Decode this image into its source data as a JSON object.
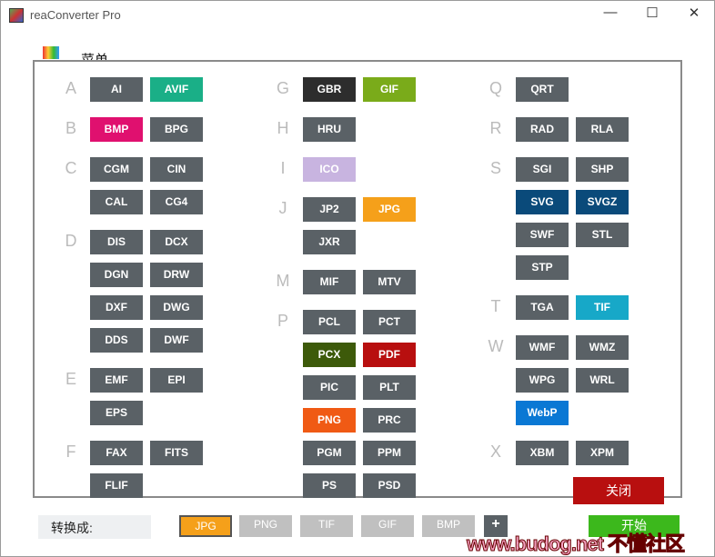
{
  "window": {
    "title": "reaConverter Pro",
    "controls": [
      "—",
      "☐",
      "✕"
    ]
  },
  "menu": {
    "label": "菜单"
  },
  "bottom": {
    "convert_label": "转换成:",
    "quick_formats": [
      "JPG",
      "PNG",
      "TIF",
      "GIF",
      "BMP"
    ],
    "selected": "JPG",
    "add": "+",
    "start": "开始"
  },
  "watermark": "www.budog.net 不懂社区",
  "colors": {
    "default": "#5a6166",
    "AVIF": "#1aaf87",
    "BMP": "#e0106f",
    "GBR": "#2d2d2d",
    "GIF": "#7aab1a",
    "ICO": "#c8b4e0",
    "JPG": "#f5a01a",
    "SVG": "#0a4a7a",
    "SVGZ": "#0a4a7a",
    "TIF": "#17a8c8",
    "PCX": "#3d5a0a",
    "PDF": "#b80f0f",
    "PNG": "#f05a14",
    "WebP": "#0a78d4"
  },
  "modal": {
    "close": "关闭",
    "columns": [
      [
        {
          "letter": "A",
          "rows": [
            [
              "AI",
              "AVIF"
            ]
          ]
        },
        {
          "letter": "B",
          "rows": [
            [
              "BMP",
              "BPG"
            ]
          ]
        },
        {
          "letter": "C",
          "rows": [
            [
              "CGM",
              "CIN"
            ],
            [
              "CAL",
              "CG4"
            ]
          ]
        },
        {
          "letter": "D",
          "rows": [
            [
              "DIS",
              "DCX"
            ],
            [
              "DGN",
              "DRW"
            ],
            [
              "DXF",
              "DWG"
            ],
            [
              "DDS",
              "DWF"
            ]
          ]
        },
        {
          "letter": "E",
          "rows": [
            [
              "EMF",
              "EPI"
            ],
            [
              "EPS"
            ]
          ]
        },
        {
          "letter": "F",
          "rows": [
            [
              "FAX",
              "FITS"
            ],
            [
              "FLIF"
            ]
          ]
        }
      ],
      [
        {
          "letter": "G",
          "rows": [
            [
              "GBR",
              "GIF"
            ]
          ]
        },
        {
          "letter": "H",
          "rows": [
            [
              "HRU"
            ]
          ]
        },
        {
          "letter": "I",
          "rows": [
            [
              "ICO"
            ]
          ]
        },
        {
          "letter": "J",
          "rows": [
            [
              "JP2",
              "JPG"
            ],
            [
              "JXR"
            ]
          ]
        },
        {
          "letter": "M",
          "rows": [
            [
              "MIF",
              "MTV"
            ]
          ]
        },
        {
          "letter": "P",
          "rows": [
            [
              "PCL",
              "PCT"
            ],
            [
              "PCX",
              "PDF"
            ],
            [
              "PIC",
              "PLT"
            ],
            [
              "PNG",
              "PRC"
            ],
            [
              "PGM",
              "PPM"
            ],
            [
              "PS",
              "PSD"
            ]
          ]
        }
      ],
      [
        {
          "letter": "Q",
          "rows": [
            [
              "QRT"
            ]
          ]
        },
        {
          "letter": "R",
          "rows": [
            [
              "RAD",
              "RLA"
            ]
          ]
        },
        {
          "letter": "S",
          "rows": [
            [
              "SGI",
              "SHP"
            ],
            [
              "SVG",
              "SVGZ"
            ],
            [
              "SWF",
              "STL"
            ],
            [
              "STP"
            ]
          ]
        },
        {
          "letter": "T",
          "rows": [
            [
              "TGA",
              "TIF"
            ]
          ]
        },
        {
          "letter": "W",
          "rows": [
            [
              "WMF",
              "WMZ"
            ],
            [
              "WPG",
              "WRL"
            ],
            [
              "WebP"
            ]
          ]
        },
        {
          "letter": "X",
          "rows": [
            [
              "XBM",
              "XPM"
            ]
          ]
        }
      ]
    ]
  }
}
